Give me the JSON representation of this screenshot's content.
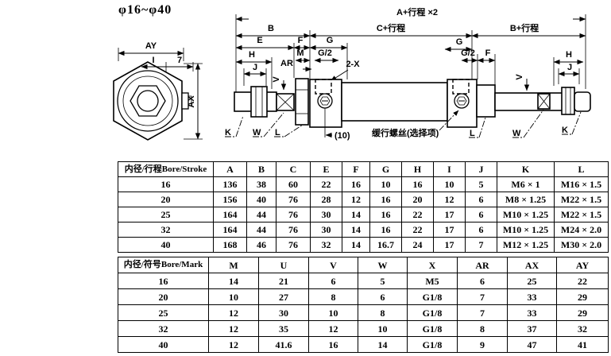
{
  "title": "φ16~φ40",
  "drawing": {
    "labels": {
      "ay": "AY",
      "i": "I",
      "seven": "7",
      "ax": "AX",
      "a_stroke": "A+行程 ×2",
      "b": "B",
      "c_stroke": "C+行程",
      "b_stroke": "B+行程",
      "e": "E",
      "f": "F",
      "g": "G",
      "g2": "G/2",
      "m": "M",
      "h": "H",
      "ar": "AR",
      "j": "J",
      "two_x": "2-X",
      "v": "V",
      "u": "U",
      "k": "K",
      "w": "W",
      "l": "L",
      "ten": "(10)",
      "buffer_screw": "缓行螺丝(选择项)"
    }
  },
  "table1": {
    "header": [
      "内径/行程Bore/Stroke",
      "A",
      "B",
      "C",
      "E",
      "F",
      "G",
      "H",
      "I",
      "J",
      "K",
      "L"
    ],
    "rows": [
      [
        "16",
        "136",
        "38",
        "60",
        "22",
        "16",
        "10",
        "16",
        "10",
        "5",
        "M6 × 1",
        "M16 × 1.5"
      ],
      [
        "20",
        "156",
        "40",
        "76",
        "28",
        "12",
        "16",
        "20",
        "12",
        "6",
        "M8 × 1.25",
        "M22 × 1.5"
      ],
      [
        "25",
        "164",
        "44",
        "76",
        "30",
        "14",
        "16",
        "22",
        "17",
        "6",
        "M10 × 1.25",
        "M22 × 1.5"
      ],
      [
        "32",
        "164",
        "44",
        "76",
        "30",
        "14",
        "16",
        "22",
        "17",
        "6",
        "M10 × 1.25",
        "M24 × 2.0"
      ],
      [
        "40",
        "168",
        "46",
        "76",
        "32",
        "14",
        "16.7",
        "24",
        "17",
        "7",
        "M12 × 1.25",
        "M30 × 2.0"
      ]
    ]
  },
  "table2": {
    "header": [
      "内径/符号Bore/Mark",
      "M",
      "U",
      "V",
      "W",
      "X",
      "AR",
      "AX",
      "AY"
    ],
    "rows": [
      [
        "16",
        "14",
        "21",
        "6",
        "5",
        "M5",
        "6",
        "25",
        "22"
      ],
      [
        "20",
        "10",
        "27",
        "8",
        "6",
        "G1/8",
        "7",
        "33",
        "29"
      ],
      [
        "25",
        "12",
        "30",
        "10",
        "8",
        "G1/8",
        "7",
        "33",
        "29"
      ],
      [
        "32",
        "12",
        "35",
        "12",
        "10",
        "G1/8",
        "8",
        "37",
        "32"
      ],
      [
        "40",
        "12",
        "41.6",
        "16",
        "14",
        "G1/8",
        "9",
        "47",
        "41"
      ]
    ]
  }
}
